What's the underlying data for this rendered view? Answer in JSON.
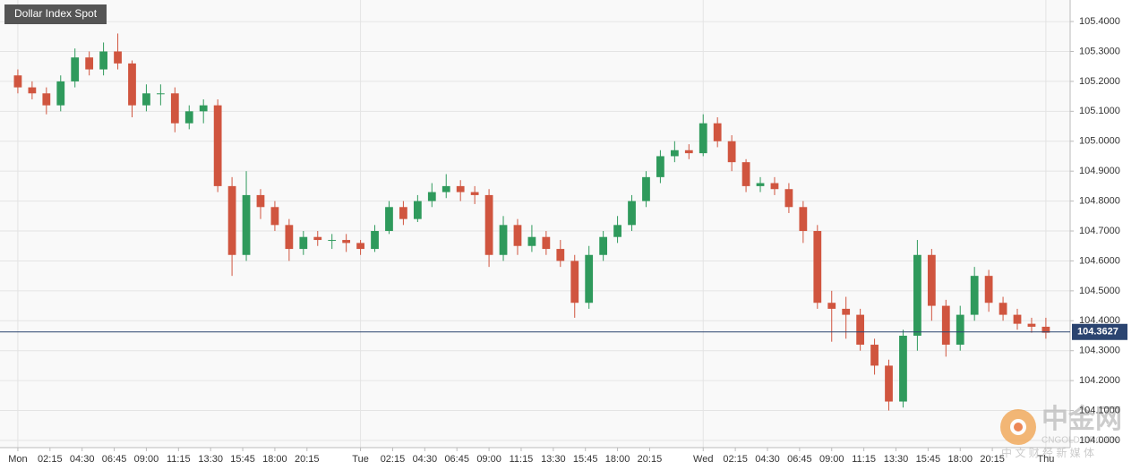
{
  "chart_data": {
    "type": "candlestick",
    "title": "Dollar Index Spot",
    "x": [
      0,
      1,
      2,
      3,
      4,
      5,
      6,
      7,
      8,
      9,
      10,
      11,
      12,
      13,
      14,
      15,
      16,
      17,
      18,
      19,
      20,
      21,
      22,
      23,
      24,
      25,
      26,
      27,
      28,
      29,
      30,
      31,
      32,
      33,
      34,
      35,
      36,
      37,
      38,
      39,
      40,
      41,
      42,
      43,
      44,
      45,
      46,
      47,
      48,
      49,
      50,
      51,
      52,
      53,
      54,
      55,
      56,
      57,
      58,
      59,
      60,
      61,
      62,
      63,
      64,
      65,
      66,
      67,
      68,
      69,
      70,
      71,
      72
    ],
    "open": [
      105.22,
      105.18,
      105.16,
      105.12,
      105.2,
      105.28,
      105.24,
      105.3,
      105.26,
      105.12,
      105.16,
      105.16,
      105.06,
      105.1,
      105.12,
      104.85,
      104.62,
      104.82,
      104.78,
      104.72,
      104.64,
      104.68,
      104.67,
      104.67,
      104.66,
      104.64,
      104.7,
      104.78,
      104.74,
      104.8,
      104.83,
      104.85,
      104.83,
      104.82,
      104.62,
      104.72,
      104.65,
      104.68,
      104.64,
      104.6,
      104.46,
      104.62,
      104.68,
      104.72,
      104.8,
      104.88,
      104.95,
      104.97,
      104.96,
      105.06,
      105.0,
      104.93,
      104.85,
      104.86,
      104.84,
      104.78,
      104.7,
      104.46,
      104.44,
      104.42,
      104.32,
      104.25,
      104.13,
      104.35,
      104.62,
      104.45,
      104.32,
      104.42,
      104.55,
      104.46,
      104.42,
      104.39,
      104.38
    ],
    "high": [
      105.24,
      105.2,
      105.18,
      105.22,
      105.31,
      105.3,
      105.33,
      105.36,
      105.27,
      105.19,
      105.19,
      105.18,
      105.12,
      105.14,
      105.14,
      104.88,
      104.9,
      104.84,
      104.8,
      104.74,
      104.7,
      104.7,
      104.69,
      104.69,
      104.67,
      104.72,
      104.8,
      104.8,
      104.82,
      104.86,
      104.89,
      104.87,
      104.85,
      104.84,
      104.75,
      104.74,
      104.72,
      104.7,
      104.67,
      104.62,
      104.65,
      104.7,
      104.75,
      104.82,
      104.9,
      104.97,
      105.0,
      104.99,
      105.09,
      105.08,
      105.02,
      104.94,
      104.88,
      104.88,
      104.86,
      104.8,
      104.72,
      104.5,
      104.48,
      104.44,
      104.34,
      104.27,
      104.37,
      104.67,
      104.64,
      104.47,
      104.45,
      104.58,
      104.57,
      104.48,
      104.44,
      104.41,
      104.41
    ],
    "low": [
      105.16,
      105.14,
      105.09,
      105.1,
      105.18,
      105.22,
      105.22,
      105.24,
      105.08,
      105.1,
      105.12,
      105.03,
      105.04,
      105.06,
      104.83,
      104.55,
      104.6,
      104.74,
      104.7,
      104.6,
      104.62,
      104.65,
      104.64,
      104.63,
      104.62,
      104.63,
      104.69,
      104.72,
      104.73,
      104.78,
      104.81,
      104.8,
      104.79,
      104.58,
      104.6,
      104.62,
      104.63,
      104.62,
      104.58,
      104.41,
      104.44,
      104.6,
      104.66,
      104.7,
      104.78,
      104.86,
      104.93,
      104.94,
      104.95,
      104.98,
      104.9,
      104.83,
      104.83,
      104.82,
      104.76,
      104.66,
      104.44,
      104.33,
      104.34,
      104.3,
      104.22,
      104.1,
      104.11,
      104.3,
      104.4,
      104.28,
      104.3,
      104.4,
      104.43,
      104.4,
      104.37,
      104.36,
      104.34
    ],
    "close": [
      105.18,
      105.16,
      105.12,
      105.2,
      105.28,
      105.24,
      105.3,
      105.26,
      105.12,
      105.16,
      105.16,
      105.06,
      105.1,
      105.12,
      104.85,
      104.62,
      104.82,
      104.78,
      104.72,
      104.64,
      104.68,
      104.67,
      104.67,
      104.66,
      104.64,
      104.7,
      104.78,
      104.74,
      104.8,
      104.83,
      104.85,
      104.83,
      104.82,
      104.62,
      104.72,
      104.65,
      104.68,
      104.64,
      104.6,
      104.46,
      104.62,
      104.68,
      104.72,
      104.8,
      104.88,
      104.95,
      104.97,
      104.96,
      105.06,
      105.0,
      104.93,
      104.85,
      104.86,
      104.84,
      104.78,
      104.7,
      104.46,
      104.44,
      104.42,
      104.32,
      104.25,
      104.13,
      104.35,
      104.62,
      104.45,
      104.32,
      104.42,
      104.55,
      104.46,
      104.42,
      104.39,
      104.38,
      104.36
    ],
    "up_color": "#2f9a5c",
    "down_color": "#d0553f",
    "last_price": 104.3627,
    "last_price_color": "#2b4470",
    "xlim": [
      -1.25,
      73.7
    ],
    "xticks": [
      {
        "value": 0,
        "label": "Mon"
      },
      {
        "value": 2.25,
        "label": "02:15"
      },
      {
        "value": 4.5,
        "label": "04:30"
      },
      {
        "value": 6.75,
        "label": "06:45"
      },
      {
        "value": 9,
        "label": "09:00"
      },
      {
        "value": 11.25,
        "label": "11:15"
      },
      {
        "value": 13.5,
        "label": "13:30"
      },
      {
        "value": 15.75,
        "label": "15:45"
      },
      {
        "value": 18,
        "label": "18:00"
      },
      {
        "value": 20.25,
        "label": "20:15"
      },
      {
        "value": 24,
        "label": "Tue"
      },
      {
        "value": 26.25,
        "label": "02:15"
      },
      {
        "value": 28.5,
        "label": "04:30"
      },
      {
        "value": 30.75,
        "label": "06:45"
      },
      {
        "value": 33,
        "label": "09:00"
      },
      {
        "value": 35.25,
        "label": "11:15"
      },
      {
        "value": 37.5,
        "label": "13:30"
      },
      {
        "value": 39.75,
        "label": "15:45"
      },
      {
        "value": 42,
        "label": "18:00"
      },
      {
        "value": 44.25,
        "label": "20:15"
      },
      {
        "value": 48,
        "label": "Wed"
      },
      {
        "value": 50.25,
        "label": "02:15"
      },
      {
        "value": 52.5,
        "label": "04:30"
      },
      {
        "value": 54.75,
        "label": "06:45"
      },
      {
        "value": 57,
        "label": "09:00"
      },
      {
        "value": 59.25,
        "label": "11:15"
      },
      {
        "value": 61.5,
        "label": "13:30"
      },
      {
        "value": 63.75,
        "label": "15:45"
      },
      {
        "value": 66,
        "label": "18:00"
      },
      {
        "value": 68.25,
        "label": "20:15"
      },
      {
        "value": 72,
        "label": "Thu"
      }
    ],
    "ylim": [
      103.976,
      105.472
    ],
    "yticks": [
      {
        "value": 104.0,
        "label": "104.0000"
      },
      {
        "value": 104.1,
        "label": "104.1000"
      },
      {
        "value": 104.2,
        "label": "104.2000"
      },
      {
        "value": 104.3,
        "label": "104.3000"
      },
      {
        "value": 104.4,
        "label": "104.4000"
      },
      {
        "value": 104.5,
        "label": "104.5000"
      },
      {
        "value": 104.6,
        "label": "104.6000"
      },
      {
        "value": 104.7,
        "label": "104.7000"
      },
      {
        "value": 104.8,
        "label": "104.8000"
      },
      {
        "value": 104.9,
        "label": "104.9000"
      },
      {
        "value": 105.0,
        "label": "105.0000"
      },
      {
        "value": 105.1,
        "label": "105.1000"
      },
      {
        "value": 105.2,
        "label": "105.2000"
      },
      {
        "value": 105.3,
        "label": "105.3000"
      },
      {
        "value": 105.4,
        "label": "105.4000"
      }
    ],
    "grid": true,
    "watermark": [
      "中金网",
      "CNGOLD.ORG.CN",
      "中 文 财 经 新 媒 体"
    ]
  }
}
